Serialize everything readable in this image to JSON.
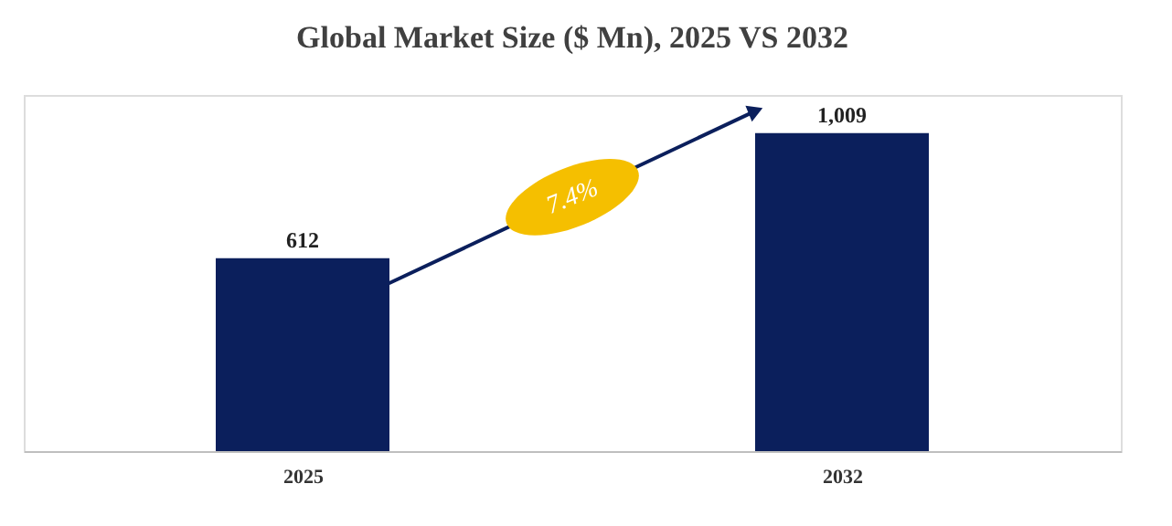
{
  "chart_data": {
    "type": "bar",
    "title": "Global Market Size ($ Mn), 2025 VS 2032",
    "categories": [
      "2025",
      "2032"
    ],
    "values": [
      612,
      1009
    ],
    "color": "#0b1f5c",
    "value_labels": [
      "612",
      "1,009"
    ],
    "grid": false,
    "tick_labels": "x",
    "annotations": [
      "7.4%"
    ]
  }
}
